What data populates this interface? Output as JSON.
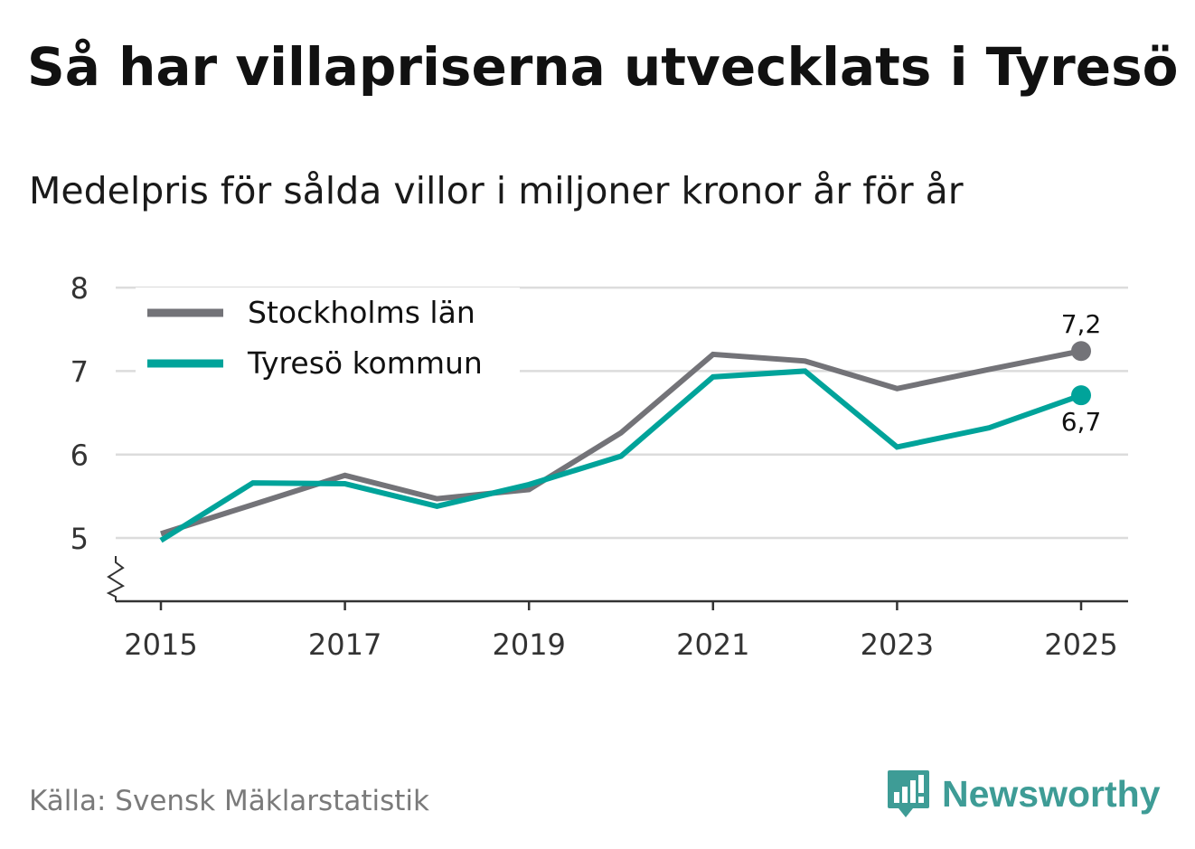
{
  "title": "Så har villapriserna utvecklats i Tyresö",
  "subtitle": "Medelpris för sålda villor i miljoner kronor år för år",
  "source": "Källa: Svensk Mäklarstatistik",
  "brand": {
    "name": "Newsworthy",
    "icon": "bar-chart-speech-bubble-icon",
    "color": "#3e9c96"
  },
  "chart_data": {
    "type": "line",
    "title": "",
    "xlabel": "",
    "ylabel": "",
    "x": [
      2015,
      2016,
      2017,
      2018,
      2019,
      2020,
      2021,
      2022,
      2023,
      2024,
      2025
    ],
    "x_ticks": [
      2015,
      2017,
      2019,
      2021,
      2023,
      2025
    ],
    "x_tick_labels": [
      "2015",
      "2017",
      "2019",
      "2021",
      "2023",
      "2025"
    ],
    "y_ticks": [
      5,
      6,
      7,
      8
    ],
    "y_tick_labels": [
      "5",
      "6",
      "7",
      "8"
    ],
    "ylim": [
      4.25,
      8
    ],
    "y_axis_break": true,
    "grid": true,
    "legend_position": "top-left",
    "series": [
      {
        "name": "Stockholms län",
        "color": "#737378",
        "values": [
          5.05,
          5.4,
          5.75,
          5.47,
          5.58,
          6.26,
          7.2,
          7.12,
          6.79,
          7.02,
          7.24
        ],
        "end_label": "7,2",
        "end_label_position": "above"
      },
      {
        "name": "Tyresö kommun",
        "color": "#00a39a",
        "values": [
          4.97,
          5.66,
          5.65,
          5.38,
          5.64,
          5.98,
          6.93,
          7.0,
          6.09,
          6.32,
          6.71
        ],
        "end_label": "6,7",
        "end_label_position": "below"
      }
    ]
  }
}
